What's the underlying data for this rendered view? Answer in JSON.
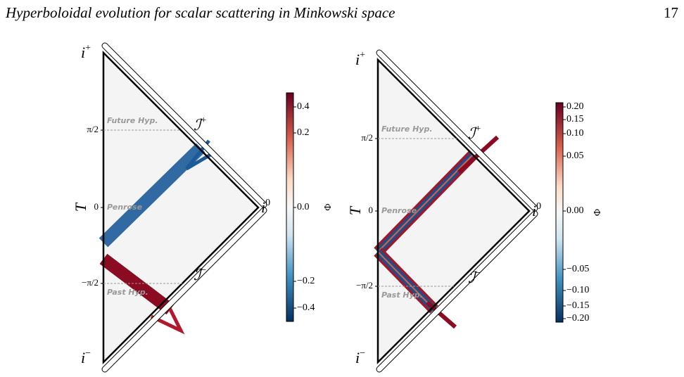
{
  "header": {
    "title": "Hyperboloidal evolution for scalar scattering in Minkowski space",
    "page": "17"
  },
  "figures": [
    {
      "top": {
        "base": "i",
        "sup": "+"
      },
      "bottom": {
        "base": "i",
        "sup": "−"
      },
      "spatial": {
        "base": "i",
        "sup": "0"
      },
      "scri_plus": {
        "base": "ℐ",
        "sup": "+"
      },
      "scri_minus": {
        "base": "ℐ",
        "sup": "−"
      },
      "axis_label": "T",
      "ticks": [
        "π/2",
        "0",
        "−π/2"
      ],
      "slices": [
        "Future Hyp.",
        "Penrose",
        "Past Hyp."
      ],
      "colorbar": {
        "label": "Φ",
        "ticks": [
          "0.4",
          "0.2",
          "0.0",
          "−0.2",
          "−0.4"
        ]
      }
    },
    {
      "top": {
        "base": "i",
        "sup": "+"
      },
      "bottom": {
        "base": "i",
        "sup": "−"
      },
      "spatial": {
        "base": "i",
        "sup": "0"
      },
      "scri_plus": {
        "base": "ℐ",
        "sup": "+"
      },
      "scri_minus": {
        "base": "ℐ",
        "sup": "−"
      },
      "axis_label": "T",
      "ticks": [
        "π/2",
        "0",
        "−π/2"
      ],
      "slices": [
        "Future Hyp.",
        "Penrose",
        "Past Hyp."
      ],
      "colorbar": {
        "label": "Φ",
        "ticks": [
          "0.20",
          "0.15",
          "0.10",
          "0.05",
          "0.00",
          "−0.05",
          "−0.10",
          "−0.15",
          "−0.20"
        ]
      }
    }
  ]
}
